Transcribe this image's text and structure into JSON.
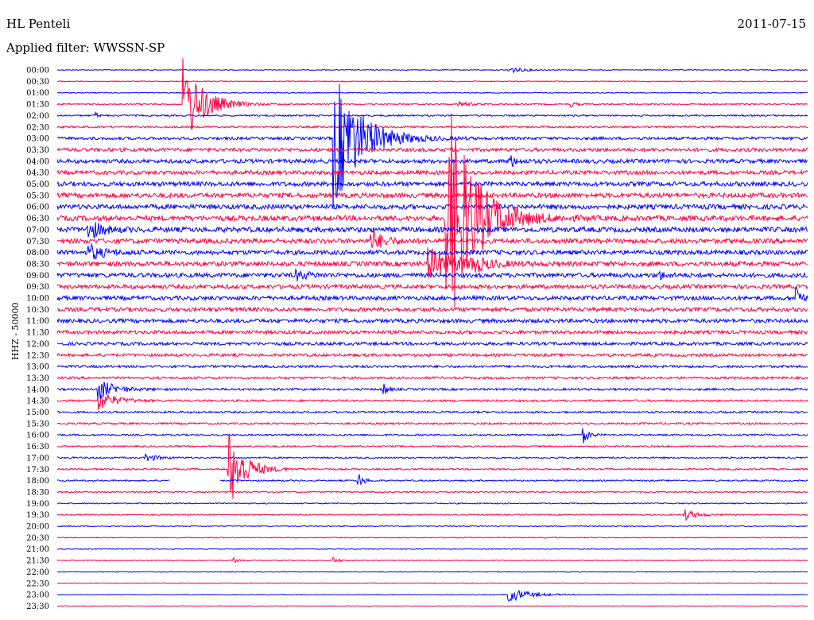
{
  "header": {
    "station": "HL Penteli",
    "date": "2011-07-15",
    "filter": "Applied filter: WWSSN-SP"
  },
  "chart_data": {
    "type": "line",
    "title": "HL Penteli",
    "subtitle": "Applied filter: WWSSN-SP",
    "date": "2011-07-15",
    "ylabel": "HHZ - 50000",
    "xlabel": "",
    "grid": false,
    "legend": "none",
    "row_labels": [
      "00:00",
      "00:30",
      "01:00",
      "01:30",
      "02:00",
      "02:30",
      "03:00",
      "03:30",
      "04:00",
      "04:30",
      "05:00",
      "05:30",
      "06:00",
      "06:30",
      "07:00",
      "07:30",
      "08:00",
      "08:30",
      "09:00",
      "09:30",
      "10:00",
      "10:30",
      "11:00",
      "11:30",
      "12:00",
      "12:30",
      "13:00",
      "13:30",
      "14:00",
      "14:30",
      "15:00",
      "15:30",
      "16:00",
      "16:30",
      "17:00",
      "17:30",
      "18:00",
      "18:30",
      "19:00",
      "19:30",
      "20:00",
      "20:30",
      "21:00",
      "21:30",
      "22:00",
      "22:30",
      "23:00",
      "23:30"
    ],
    "colors": [
      "#0000ff",
      "#ff0040"
    ],
    "noise_levels": [
      0.5,
      0.6,
      0.6,
      0.9,
      1.0,
      1.2,
      1.8,
      2.2,
      2.5,
      2.5,
      2.8,
      3.0,
      3.0,
      3.2,
      3.2,
      3.0,
      2.8,
      3.0,
      2.8,
      2.6,
      2.6,
      2.5,
      2.4,
      2.2,
      2.0,
      1.8,
      1.6,
      1.5,
      1.4,
      1.3,
      1.2,
      1.2,
      1.1,
      1.0,
      1.0,
      1.0,
      0.9,
      0.8,
      0.7,
      0.7,
      0.6,
      0.6,
      0.5,
      0.5,
      0.5,
      0.5,
      0.4,
      0.4
    ],
    "events": [
      {
        "row": 0,
        "minute": 18.0,
        "amplitude": 5,
        "duration": 1.0
      },
      {
        "row": 3,
        "minute": 5.0,
        "amplitude": 60,
        "duration": 1.5
      },
      {
        "row": 3,
        "minute": 16.0,
        "amplitude": 4,
        "duration": 0.8
      },
      {
        "row": 3,
        "minute": 20.5,
        "amplitude": 3,
        "duration": 0.5
      },
      {
        "row": 4,
        "minute": 1.5,
        "amplitude": 4,
        "duration": 0.3
      },
      {
        "row": 6,
        "minute": 11.0,
        "amplitude": 95,
        "duration": 2.0
      },
      {
        "row": 8,
        "minute": 18.0,
        "amplitude": 10,
        "duration": 0.6
      },
      {
        "row": 13,
        "minute": 15.5,
        "amplitude": 170,
        "duration": 2.0
      },
      {
        "row": 14,
        "minute": 1.2,
        "amplitude": 14,
        "duration": 1.0
      },
      {
        "row": 15,
        "minute": 12.5,
        "amplitude": 14,
        "duration": 1.0
      },
      {
        "row": 16,
        "minute": 1.2,
        "amplitude": 12,
        "duration": 1.0
      },
      {
        "row": 17,
        "minute": 14.8,
        "amplitude": 20,
        "duration": 2.0
      },
      {
        "row": 17,
        "minute": 16.5,
        "amplitude": 10,
        "duration": 1.0
      },
      {
        "row": 18,
        "minute": 9.5,
        "amplitude": 6,
        "duration": 1.0
      },
      {
        "row": 18,
        "minute": 24.0,
        "amplitude": 6,
        "duration": 0.5
      },
      {
        "row": 20,
        "minute": 29.5,
        "amplitude": 30,
        "duration": 0.3
      },
      {
        "row": 28,
        "minute": 13.0,
        "amplitude": 12,
        "duration": 0.3
      },
      {
        "row": 28,
        "minute": 1.6,
        "amplitude": 14,
        "duration": 1.2
      },
      {
        "row": 29,
        "minute": 1.6,
        "amplitude": 14,
        "duration": 1.2
      },
      {
        "row": 32,
        "minute": 21.0,
        "amplitude": 12,
        "duration": 0.4
      },
      {
        "row": 34,
        "minute": 3.5,
        "amplitude": 6,
        "duration": 0.8
      },
      {
        "row": 35,
        "minute": 6.8,
        "amplitude": 55,
        "duration": 1.2
      },
      {
        "row": 36,
        "minute": 12.0,
        "amplitude": 12,
        "duration": 0.4
      },
      {
        "row": 39,
        "minute": 25.0,
        "amplitude": 8,
        "duration": 1.0
      },
      {
        "row": 43,
        "minute": 7.0,
        "amplitude": 5,
        "duration": 0.3
      },
      {
        "row": 43,
        "minute": 11.0,
        "amplitude": 4,
        "duration": 0.5
      },
      {
        "row": 46,
        "minute": 18.0,
        "amplitude": 10,
        "duration": 1.5
      }
    ],
    "gaps": [
      {
        "row": 36,
        "start_minute": 4.5,
        "end_minute": 6.5
      }
    ]
  }
}
